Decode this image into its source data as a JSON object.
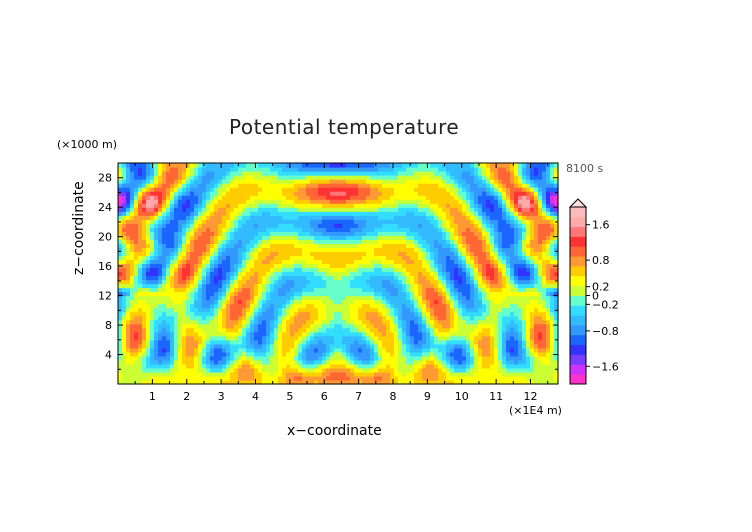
{
  "chart_data": {
    "type": "heatmap",
    "title": "Potential temperature",
    "xlabel": "x−coordinate",
    "ylabel": "z−coordinate",
    "x_unit": "(×1E4 m)",
    "y_unit": "(×1000 m)",
    "time_label": "8100 s",
    "xlim": [
      0,
      12.8
    ],
    "ylim": [
      0,
      30
    ],
    "x_ticks": [
      1,
      2,
      3,
      4,
      5,
      6,
      7,
      8,
      9,
      10,
      11,
      12
    ],
    "y_ticks": [
      4,
      8,
      12,
      16,
      20,
      24,
      28
    ],
    "colorbar": {
      "range": [
        -2.0,
        2.0
      ],
      "tick_values": [
        1.6,
        0.8,
        0.2,
        0,
        -0.2,
        -0.8,
        -1.6
      ],
      "tick_labels": [
        "1.6",
        "0.8",
        "0.2",
        "0",
        "−0.2",
        "−0.8",
        "−1.6"
      ],
      "colors": [
        "#ff33cc",
        "#cc33ff",
        "#7a3cff",
        "#3333ff",
        "#1a66ff",
        "#3399ff",
        "#33bbff",
        "#33ddff",
        "#66ffcc",
        "#ccff33",
        "#ffff00",
        "#ffcc00",
        "#ff9933",
        "#ff6633",
        "#ff3333",
        "#ff7777",
        "#ffaaaa",
        "#ffbbbb"
      ],
      "over_color": "#ffdede"
    },
    "field_description": "Symmetric internal gravity wave pattern about x=6.4; wavefronts radiate upward from the lower center, alternating positive (red) and negative (blue) anomalies."
  }
}
